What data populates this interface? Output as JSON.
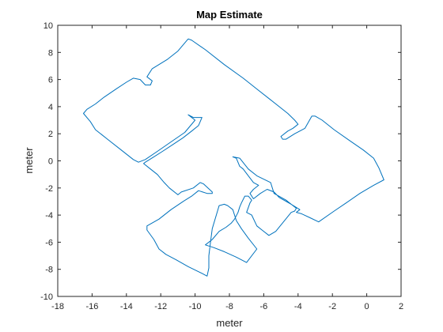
{
  "chart_data": {
    "type": "line",
    "title": "Map Estimate",
    "xlabel": "meter",
    "ylabel": "meter",
    "xlim": [
      -18,
      2
    ],
    "ylim": [
      -10,
      10
    ],
    "xticks": [
      -18,
      -16,
      -14,
      -12,
      -10,
      -8,
      -6,
      -4,
      -2,
      0,
      2
    ],
    "yticks": [
      -10,
      -8,
      -6,
      -4,
      -2,
      0,
      2,
      4,
      6,
      8,
      10
    ],
    "grid": false,
    "series": [
      {
        "color": "#0072BD",
        "points": [
          [
            -10.4,
            9.0
          ],
          [
            -10.2,
            8.9
          ],
          [
            -9.4,
            8.2
          ],
          [
            -8.3,
            7.1
          ],
          [
            -7.2,
            6.1
          ],
          [
            -6.4,
            5.3
          ],
          [
            -5.6,
            4.5
          ],
          [
            -4.6,
            3.5
          ],
          [
            -4.2,
            3.0
          ],
          [
            -4.0,
            2.7
          ],
          [
            -4.3,
            2.4
          ],
          [
            -4.6,
            2.2
          ],
          [
            -5.0,
            1.8
          ],
          [
            -4.9,
            1.6
          ],
          [
            -4.7,
            1.6
          ],
          [
            -4.2,
            2.0
          ],
          [
            -3.6,
            2.4
          ],
          [
            -3.2,
            3.3
          ],
          [
            -3.0,
            3.3
          ],
          [
            -2.6,
            3.0
          ],
          [
            -1.9,
            2.3
          ],
          [
            -1.0,
            1.5
          ],
          [
            -0.2,
            0.8
          ],
          [
            0.4,
            0.2
          ],
          [
            0.7,
            -0.5
          ],
          [
            1.0,
            -1.4
          ],
          [
            0.4,
            -1.8
          ],
          [
            -0.4,
            -2.4
          ],
          [
            -1.2,
            -3.1
          ],
          [
            -1.9,
            -3.7
          ],
          [
            -2.8,
            -4.5
          ],
          [
            -3.3,
            -4.2
          ],
          [
            -3.8,
            -3.9
          ],
          [
            -4.1,
            -3.8
          ],
          [
            -3.9,
            -3.6
          ],
          [
            -4.4,
            -3.2
          ],
          [
            -5.1,
            -2.7
          ],
          [
            -5.4,
            -2.3
          ],
          [
            -5.8,
            -2.1
          ],
          [
            -6.2,
            -2.4
          ],
          [
            -6.6,
            -2.8
          ],
          [
            -6.8,
            -2.4
          ],
          [
            -6.6,
            -2.1
          ],
          [
            -6.3,
            -1.8
          ],
          [
            -6.6,
            -1.6
          ],
          [
            -6.9,
            -1.1
          ],
          [
            -7.2,
            -0.6
          ],
          [
            -7.4,
            -0.4
          ],
          [
            -7.6,
            0.2
          ],
          [
            -7.8,
            0.3
          ],
          [
            -7.4,
            0.2
          ],
          [
            -6.9,
            -0.6
          ],
          [
            -6.4,
            -1.1
          ],
          [
            -5.6,
            -1.6
          ],
          [
            -5.4,
            -2.4
          ],
          [
            -4.7,
            -2.9
          ],
          [
            -4.1,
            -3.5
          ],
          [
            -4.2,
            -3.7
          ],
          [
            -4.4,
            -3.8
          ],
          [
            -5.3,
            -5.2
          ],
          [
            -5.7,
            -5.5
          ],
          [
            -6.1,
            -5.1
          ],
          [
            -6.4,
            -4.8
          ],
          [
            -6.7,
            -4.0
          ],
          [
            -7.0,
            -3.8
          ],
          [
            -6.8,
            -3.1
          ],
          [
            -6.7,
            -2.9
          ],
          [
            -6.9,
            -2.6
          ],
          [
            -7.1,
            -2.6
          ],
          [
            -7.3,
            -3.1
          ],
          [
            -7.4,
            -3.4
          ],
          [
            -7.5,
            -3.8
          ],
          [
            -7.7,
            -4.3
          ],
          [
            -7.9,
            -4.6
          ],
          [
            -8.2,
            -4.9
          ],
          [
            -8.6,
            -5.2
          ],
          [
            -9.0,
            -5.8
          ],
          [
            -9.4,
            -6.2
          ],
          [
            -8.9,
            -6.4
          ],
          [
            -8.3,
            -6.7
          ],
          [
            -7.6,
            -7.1
          ],
          [
            -7.0,
            -7.5
          ],
          [
            -6.4,
            -6.5
          ],
          [
            -6.9,
            -5.7
          ],
          [
            -7.3,
            -5.0
          ],
          [
            -7.6,
            -4.4
          ],
          [
            -7.7,
            -4.0
          ],
          [
            -7.8,
            -3.6
          ],
          [
            -8.1,
            -3.3
          ],
          [
            -8.3,
            -3.2
          ],
          [
            -8.6,
            -3.3
          ],
          [
            -9.0,
            -5.0
          ],
          [
            -9.1,
            -6.0
          ],
          [
            -9.2,
            -7.0
          ],
          [
            -9.2,
            -7.9
          ],
          [
            -9.3,
            -8.5
          ],
          [
            -9.6,
            -8.3
          ],
          [
            -10.4,
            -7.8
          ],
          [
            -11.1,
            -7.3
          ],
          [
            -11.7,
            -6.9
          ],
          [
            -12.1,
            -6.5
          ],
          [
            -12.4,
            -5.8
          ],
          [
            -12.8,
            -5.1
          ],
          [
            -12.8,
            -4.8
          ],
          [
            -12.1,
            -4.3
          ],
          [
            -11.4,
            -3.6
          ],
          [
            -10.7,
            -3.0
          ],
          [
            -10.2,
            -2.6
          ],
          [
            -9.8,
            -2.2
          ],
          [
            -9.3,
            -2.4
          ],
          [
            -9.0,
            -2.4
          ],
          [
            -9.0,
            -2.3
          ],
          [
            -9.5,
            -1.7
          ],
          [
            -9.7,
            -1.6
          ],
          [
            -10.1,
            -2.0
          ],
          [
            -10.8,
            -2.3
          ],
          [
            -11.0,
            -2.5
          ],
          [
            -11.5,
            -2.0
          ],
          [
            -11.8,
            -1.6
          ],
          [
            -12.2,
            -1.0
          ],
          [
            -12.6,
            -0.6
          ],
          [
            -13.0,
            -0.2
          ],
          [
            -12.9,
            -0.1
          ],
          [
            -12.4,
            0.3
          ],
          [
            -11.9,
            0.7
          ],
          [
            -11.3,
            1.2
          ],
          [
            -10.7,
            1.7
          ],
          [
            -10.2,
            2.2
          ],
          [
            -9.8,
            2.6
          ],
          [
            -9.7,
            2.9
          ],
          [
            -9.6,
            3.2
          ],
          [
            -10.1,
            3.2
          ],
          [
            -10.4,
            3.4
          ],
          [
            -10.0,
            3.0
          ],
          [
            -10.6,
            2.1
          ],
          [
            -11.4,
            1.4
          ],
          [
            -12.2,
            0.7
          ],
          [
            -12.9,
            0.1
          ],
          [
            -13.3,
            -0.1
          ],
          [
            -13.6,
            0.1
          ],
          [
            -14.3,
            0.8
          ],
          [
            -15.1,
            1.6
          ],
          [
            -15.8,
            2.3
          ],
          [
            -16.1,
            2.9
          ],
          [
            -16.5,
            3.5
          ],
          [
            -16.3,
            3.8
          ],
          [
            -15.8,
            4.2
          ],
          [
            -15.3,
            4.7
          ],
          [
            -14.6,
            5.3
          ],
          [
            -14.0,
            5.8
          ],
          [
            -13.6,
            6.1
          ],
          [
            -13.2,
            6.0
          ],
          [
            -12.9,
            5.6
          ],
          [
            -12.6,
            5.6
          ],
          [
            -12.5,
            5.9
          ],
          [
            -12.8,
            6.2
          ],
          [
            -12.5,
            6.8
          ],
          [
            -11.6,
            7.5
          ],
          [
            -11.0,
            8.1
          ],
          [
            -10.4,
            9.0
          ]
        ]
      }
    ]
  }
}
